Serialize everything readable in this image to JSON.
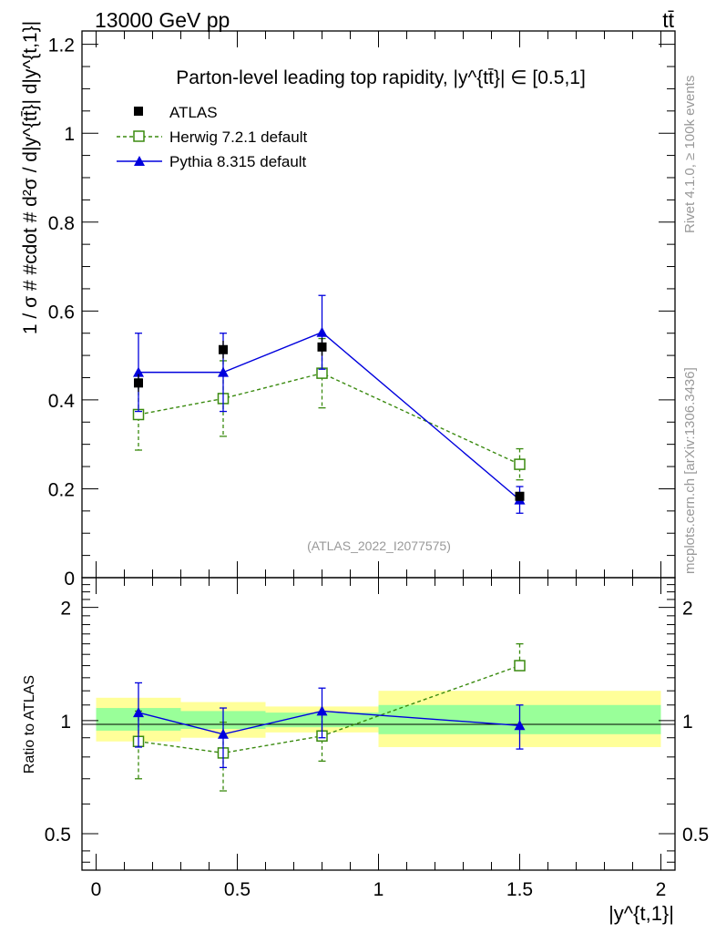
{
  "header": {
    "energy_label": "13000 GeV pp",
    "process_label": "tt̄"
  },
  "side": {
    "rivet_label": "Rivet 4.1.0, ≥ 100k events",
    "mcplots_label": "mcplots.cern.ch [arXiv:1306.3436]"
  },
  "chart_data": [
    {
      "type": "scatter",
      "panel": "main",
      "title": "Parton-level leading top rapidity, |y^{tt̄}| ∈ [0.5,1]",
      "analysis_label": "(ATLAS_2022_I2077575)",
      "xlabel": "|y^{t,1}|",
      "ylabel": "1 / σ # #cdot # d²σ / d|y^{tt̄}| d|y^{t,1}|",
      "xlim": [
        -0.05,
        2.05
      ],
      "ylim": [
        0,
        1.23
      ],
      "y_ticks": [
        "0",
        "0.2",
        "0.4",
        "0.6",
        "0.8",
        "1",
        "1.2"
      ],
      "x_bins": [
        [
          0,
          0.3
        ],
        [
          0.3,
          0.6
        ],
        [
          0.6,
          1.0
        ],
        [
          1.0,
          2.0
        ]
      ],
      "legend_position": "top-left",
      "series": [
        {
          "name": "ATLAS",
          "style": "data",
          "x": [
            0.15,
            0.45,
            0.8,
            1.5
          ],
          "values": [
            0.438,
            0.513,
            0.519,
            0.183
          ],
          "err": [
            0.02,
            0.02,
            0.02,
            0.01
          ]
        },
        {
          "name": "Herwig 7.2.1 default",
          "style": "herwig",
          "x": [
            0.15,
            0.45,
            0.8,
            1.5
          ],
          "values": [
            0.367,
            0.403,
            0.46,
            0.255
          ],
          "err": [
            0.08,
            0.085,
            0.078,
            0.035
          ]
        },
        {
          "name": "Pythia 8.315 default",
          "style": "pythia",
          "x": [
            0.15,
            0.45,
            0.8,
            1.5
          ],
          "values": [
            0.462,
            0.462,
            0.552,
            0.175
          ],
          "err": [
            0.088,
            0.088,
            0.083,
            0.03
          ]
        }
      ]
    },
    {
      "type": "scatter",
      "panel": "ratio",
      "ylabel": "Ratio to ATLAS",
      "xlabel": "|y^{t,1}|",
      "ylim_log": [
        0.4,
        2.4
      ],
      "y_ticks": [
        "0.5",
        "1",
        "2"
      ],
      "y_tick_values": [
        0.5,
        1,
        2
      ],
      "x_ticks": [
        "0",
        "0.5",
        "1",
        "1.5",
        "2"
      ],
      "x_tick_values": [
        0,
        0.5,
        1,
        1.5,
        2
      ],
      "bands": {
        "bins": [
          [
            0,
            0.3
          ],
          [
            0.3,
            0.6
          ],
          [
            0.6,
            1.0
          ],
          [
            1.0,
            2.0
          ]
        ],
        "yellow": [
          [
            0.88,
            1.15
          ],
          [
            0.9,
            1.12
          ],
          [
            0.93,
            1.09
          ],
          [
            0.85,
            1.2
          ]
        ],
        "green": [
          [
            0.94,
            1.08
          ],
          [
            0.95,
            1.06
          ],
          [
            0.96,
            1.05
          ],
          [
            0.92,
            1.1
          ]
        ]
      },
      "series": [
        {
          "name": "Herwig 7.2.1 default",
          "style": "herwig",
          "x": [
            0.15,
            0.45,
            0.8,
            1.5
          ],
          "values": [
            0.88,
            0.82,
            0.91,
            1.4
          ],
          "err_low": [
            0.18,
            0.17,
            0.13,
            0.0
          ],
          "err_high": [
            0.18,
            0.17,
            0.13,
            0.2
          ]
        },
        {
          "name": "Pythia 8.315 default",
          "style": "pythia",
          "x": [
            0.15,
            0.45,
            0.8,
            1.5
          ],
          "values": [
            1.05,
            0.92,
            1.06,
            0.97
          ],
          "err_low": [
            0.2,
            0.17,
            0.16,
            0.13
          ],
          "err_high": [
            0.21,
            0.16,
            0.16,
            0.13
          ]
        }
      ]
    }
  ],
  "colors": {
    "data": "#000000",
    "herwig": "#3a8a0f",
    "pythia": "#0000dd",
    "band_yellow": "#ffff99",
    "band_green": "#99ff99",
    "gray_text": "#999999"
  }
}
